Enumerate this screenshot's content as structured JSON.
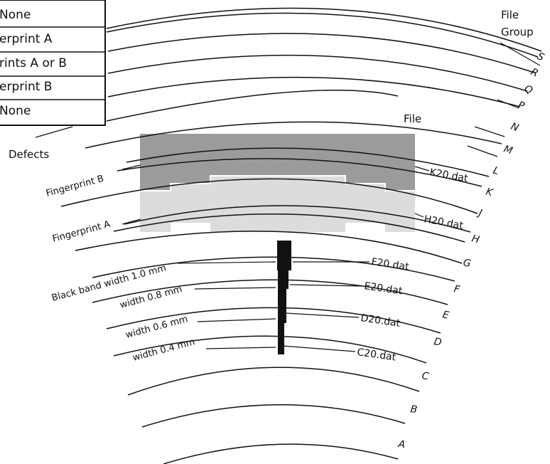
{
  "legend": {
    "rows": [
      "None",
      "erprint A",
      "rints A or B",
      "erprint B",
      "None"
    ],
    "title": "Defects"
  },
  "headers": {
    "group": "File",
    "group2": "Group",
    "file": "File"
  },
  "groups": [
    "S",
    "R",
    "Q",
    "P",
    "N",
    "M",
    "L",
    "K",
    "J",
    "H",
    "G",
    "F",
    "E",
    "D",
    "C",
    "B",
    "A"
  ],
  "regions": {
    "fingerprint_b": "Fingerprint B",
    "fingerprint_a": "Fingerprint A"
  },
  "files": {
    "k20": "K20.dat",
    "h20": "H20.dat",
    "f20": "F20.dat",
    "e20": "E20.dat",
    "d20": "D20.dat",
    "c20": "C20.dat"
  },
  "bands": {
    "b10": "Black band width 1.0 mm",
    "b08": "width 0.8 mm",
    "b06": "width 0.6 mm",
    "b04": "width 0.4 mm"
  },
  "colors": {
    "dark_fill": "#9b9b9b",
    "light_fill": "#dcdcdc",
    "line": "#111111"
  }
}
